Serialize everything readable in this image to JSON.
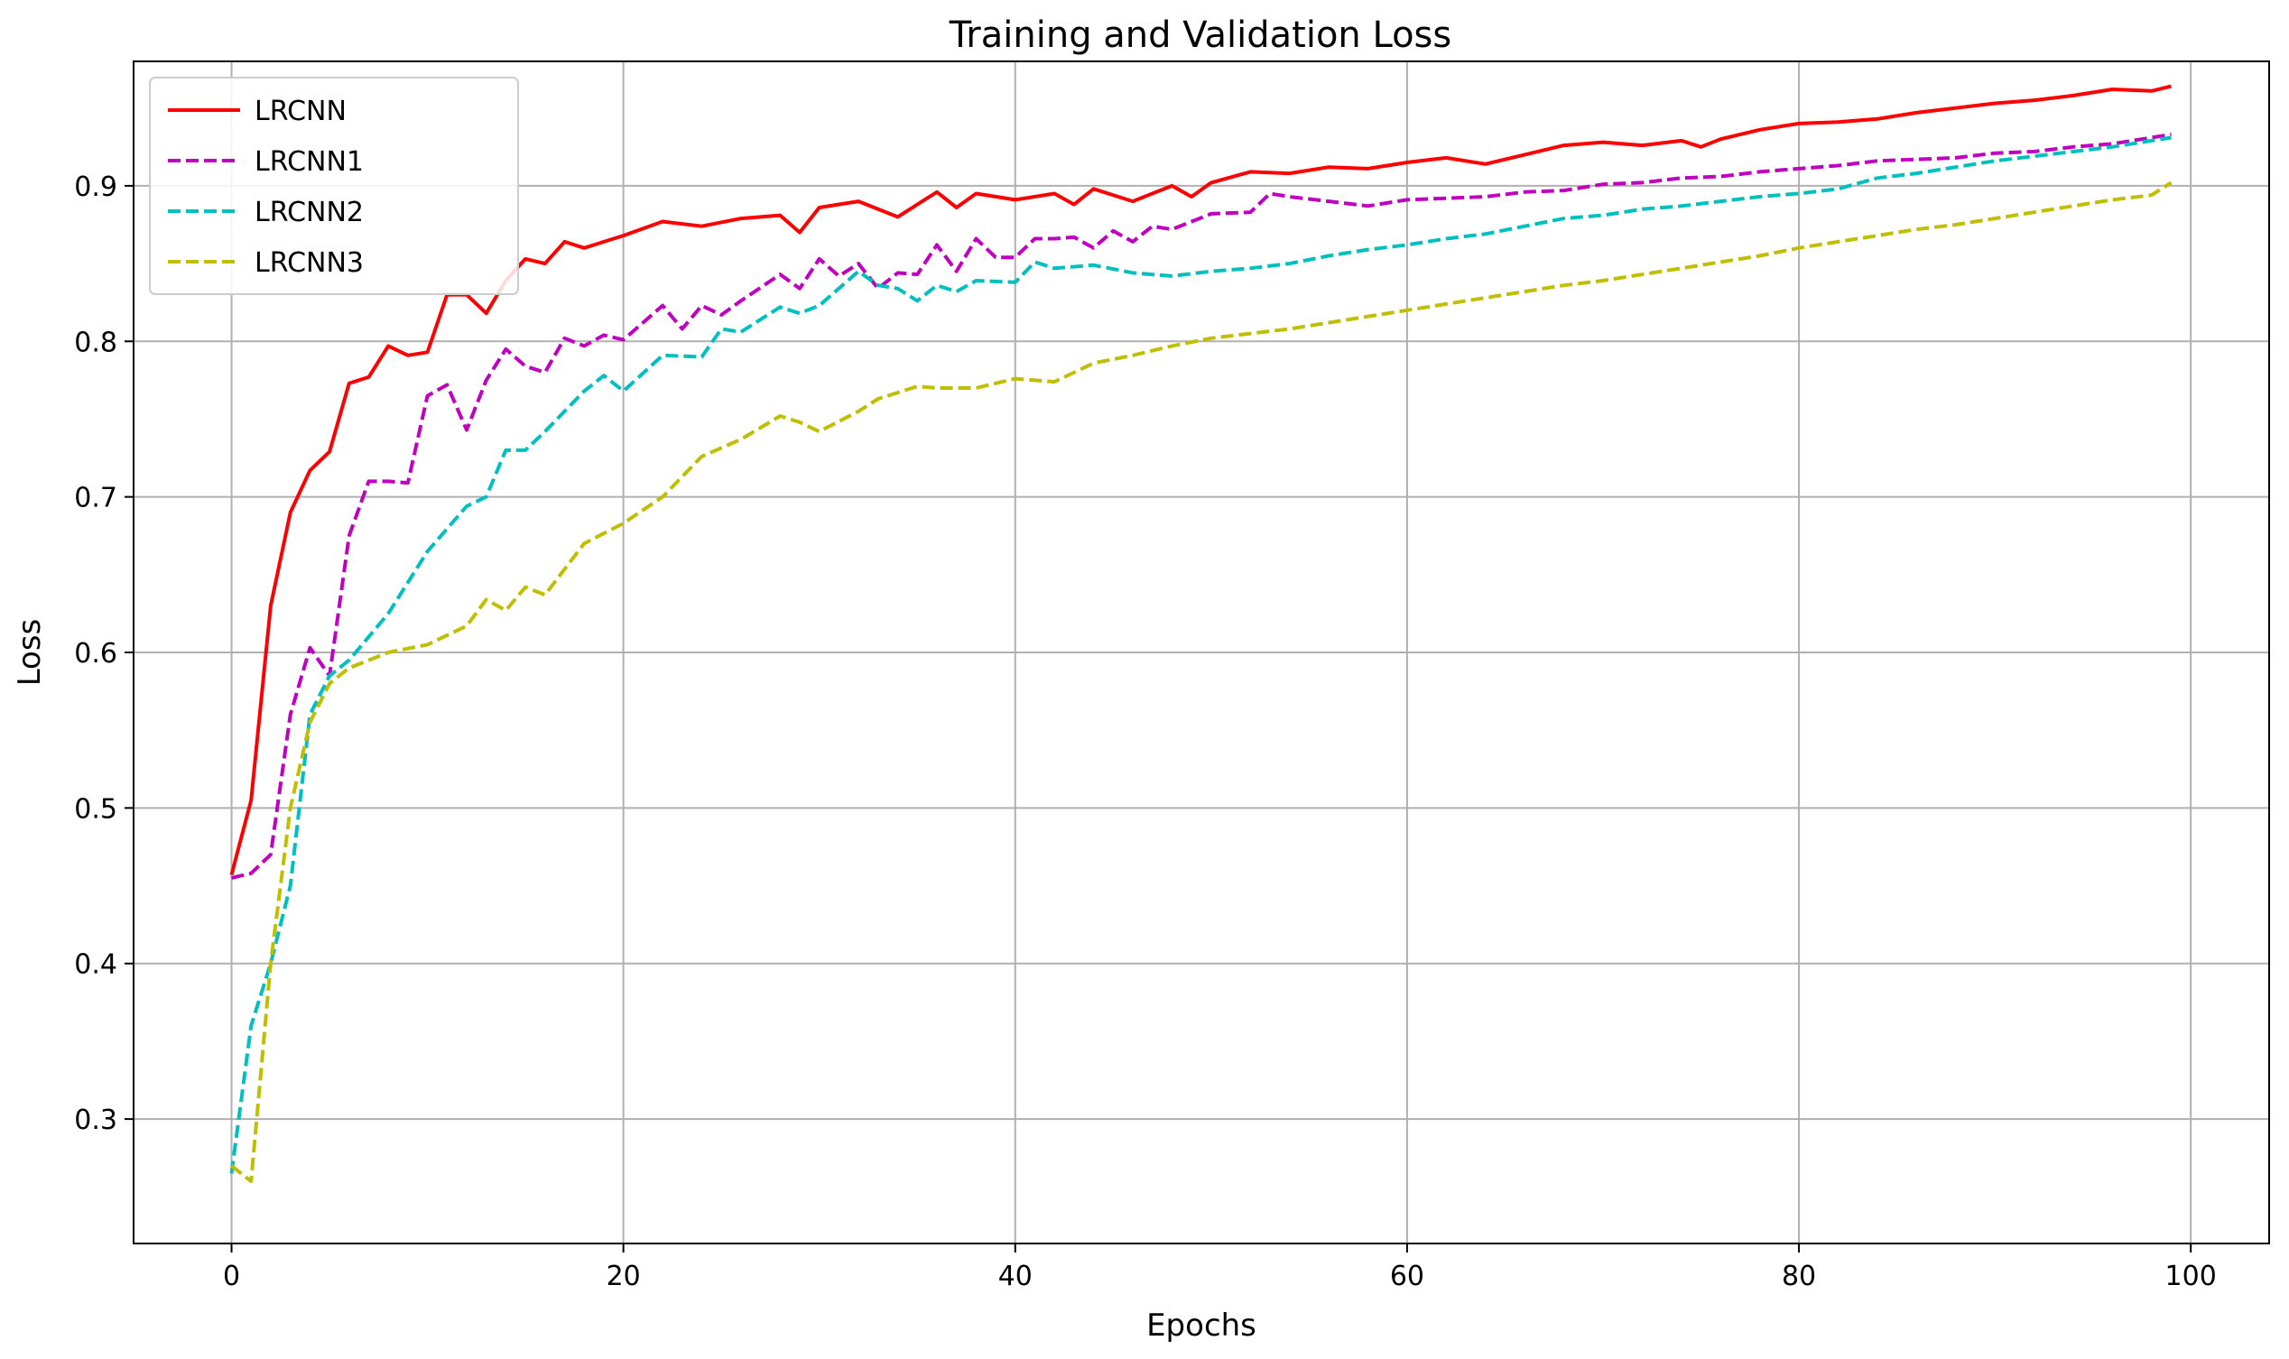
{
  "chart_data": {
    "type": "line",
    "title": "Training and Validation Loss",
    "xlabel": "Epochs",
    "ylabel": "Loss",
    "xlim": [
      -5,
      104
    ],
    "ylim": [
      0.22,
      0.98
    ],
    "xticks": [
      0,
      20,
      40,
      60,
      80,
      100
    ],
    "yticks": [
      0.3,
      0.4,
      0.5,
      0.6,
      0.7,
      0.8,
      0.9
    ],
    "grid": true,
    "legend_position": "top-left",
    "series": [
      {
        "name": "LRCNN",
        "color": "#ff0000",
        "dash": "solid",
        "x": [
          0,
          1,
          2,
          3,
          4,
          5,
          6,
          7,
          8,
          9,
          10,
          11,
          12,
          13,
          14,
          15,
          16,
          17,
          18,
          19,
          20,
          22,
          24,
          26,
          28,
          29,
          30,
          32,
          34,
          36,
          37,
          38,
          40,
          42,
          43,
          44,
          46,
          48,
          49,
          50,
          52,
          54,
          56,
          58,
          60,
          62,
          64,
          66,
          68,
          70,
          72,
          74,
          75,
          76,
          78,
          80,
          82,
          84,
          86,
          88,
          90,
          92,
          94,
          96,
          98,
          99
        ],
        "y": [
          0.457,
          0.505,
          0.63,
          0.69,
          0.717,
          0.729,
          0.773,
          0.777,
          0.797,
          0.791,
          0.793,
          0.83,
          0.83,
          0.818,
          0.839,
          0.853,
          0.85,
          0.864,
          0.86,
          0.864,
          0.868,
          0.877,
          0.874,
          0.879,
          0.881,
          0.87,
          0.886,
          0.89,
          0.88,
          0.896,
          0.886,
          0.895,
          0.891,
          0.895,
          0.888,
          0.898,
          0.89,
          0.9,
          0.893,
          0.902,
          0.909,
          0.908,
          0.912,
          0.911,
          0.915,
          0.918,
          0.914,
          0.92,
          0.926,
          0.928,
          0.926,
          0.929,
          0.925,
          0.93,
          0.936,
          0.94,
          0.941,
          0.943,
          0.947,
          0.95,
          0.953,
          0.955,
          0.958,
          0.962,
          0.961,
          0.964
        ]
      },
      {
        "name": "LRCNN1",
        "color": "#bf00bf",
        "dash": "dashed",
        "x": [
          0,
          1,
          2,
          3,
          4,
          5,
          6,
          7,
          8,
          9,
          10,
          11,
          12,
          13,
          14,
          15,
          16,
          17,
          18,
          19,
          20,
          22,
          23,
          24,
          25,
          26,
          28,
          29,
          30,
          31,
          32,
          33,
          34,
          35,
          36,
          37,
          38,
          39,
          40,
          41,
          42,
          43,
          44,
          45,
          46,
          47,
          48,
          50,
          52,
          53,
          54,
          56,
          58,
          60,
          62,
          64,
          66,
          68,
          70,
          72,
          74,
          76,
          78,
          80,
          82,
          84,
          86,
          88,
          90,
          92,
          94,
          96,
          98,
          99
        ],
        "y": [
          0.455,
          0.458,
          0.47,
          0.56,
          0.603,
          0.585,
          0.675,
          0.71,
          0.71,
          0.709,
          0.765,
          0.772,
          0.743,
          0.775,
          0.795,
          0.784,
          0.78,
          0.802,
          0.797,
          0.804,
          0.801,
          0.823,
          0.808,
          0.823,
          0.817,
          0.826,
          0.843,
          0.834,
          0.853,
          0.842,
          0.85,
          0.834,
          0.844,
          0.843,
          0.862,
          0.845,
          0.866,
          0.854,
          0.854,
          0.866,
          0.866,
          0.867,
          0.86,
          0.871,
          0.864,
          0.874,
          0.872,
          0.882,
          0.883,
          0.895,
          0.893,
          0.89,
          0.887,
          0.891,
          0.892,
          0.893,
          0.896,
          0.897,
          0.901,
          0.902,
          0.905,
          0.906,
          0.909,
          0.911,
          0.913,
          0.916,
          0.917,
          0.918,
          0.921,
          0.922,
          0.925,
          0.927,
          0.931,
          0.933
        ]
      },
      {
        "name": "LRCNN2",
        "color": "#00bfbf",
        "dash": "dashed",
        "x": [
          0,
          1,
          2,
          3,
          4,
          5,
          6,
          8,
          10,
          12,
          13,
          14,
          15,
          16,
          18,
          19,
          20,
          22,
          24,
          25,
          26,
          28,
          29,
          30,
          32,
          33,
          34,
          35,
          36,
          37,
          38,
          40,
          41,
          42,
          44,
          46,
          48,
          50,
          52,
          54,
          56,
          58,
          60,
          62,
          64,
          66,
          68,
          70,
          72,
          74,
          76,
          78,
          80,
          82,
          84,
          86,
          88,
          90,
          92,
          94,
          96,
          98,
          99
        ],
        "y": [
          0.265,
          0.36,
          0.4,
          0.45,
          0.56,
          0.585,
          0.595,
          0.625,
          0.665,
          0.694,
          0.7,
          0.73,
          0.73,
          0.742,
          0.768,
          0.778,
          0.768,
          0.791,
          0.79,
          0.808,
          0.806,
          0.822,
          0.818,
          0.823,
          0.845,
          0.836,
          0.834,
          0.826,
          0.836,
          0.832,
          0.839,
          0.838,
          0.851,
          0.847,
          0.849,
          0.844,
          0.842,
          0.845,
          0.847,
          0.85,
          0.855,
          0.859,
          0.862,
          0.866,
          0.869,
          0.874,
          0.879,
          0.881,
          0.885,
          0.887,
          0.89,
          0.893,
          0.895,
          0.898,
          0.905,
          0.908,
          0.912,
          0.916,
          0.919,
          0.922,
          0.925,
          0.929,
          0.931
        ]
      },
      {
        "name": "LRCNN3",
        "color": "#bfbf00",
        "dash": "dashed",
        "x": [
          0,
          1,
          2,
          3,
          4,
          5,
          6,
          8,
          10,
          12,
          13,
          14,
          15,
          16,
          18,
          20,
          22,
          24,
          26,
          28,
          29,
          30,
          32,
          33,
          34,
          35,
          36,
          38,
          40,
          41,
          42,
          44,
          46,
          48,
          50,
          52,
          54,
          56,
          58,
          60,
          62,
          64,
          66,
          68,
          70,
          72,
          74,
          76,
          78,
          80,
          82,
          84,
          86,
          88,
          90,
          92,
          94,
          96,
          98,
          99
        ],
        "y": [
          0.27,
          0.26,
          0.4,
          0.5,
          0.555,
          0.58,
          0.59,
          0.6,
          0.605,
          0.617,
          0.634,
          0.627,
          0.642,
          0.637,
          0.67,
          0.683,
          0.7,
          0.726,
          0.737,
          0.752,
          0.748,
          0.742,
          0.755,
          0.763,
          0.767,
          0.771,
          0.77,
          0.77,
          0.776,
          0.775,
          0.774,
          0.786,
          0.791,
          0.797,
          0.802,
          0.805,
          0.808,
          0.812,
          0.816,
          0.82,
          0.824,
          0.828,
          0.832,
          0.836,
          0.839,
          0.843,
          0.847,
          0.851,
          0.855,
          0.86,
          0.864,
          0.868,
          0.872,
          0.875,
          0.879,
          0.883,
          0.887,
          0.891,
          0.894,
          0.902
        ]
      }
    ]
  }
}
